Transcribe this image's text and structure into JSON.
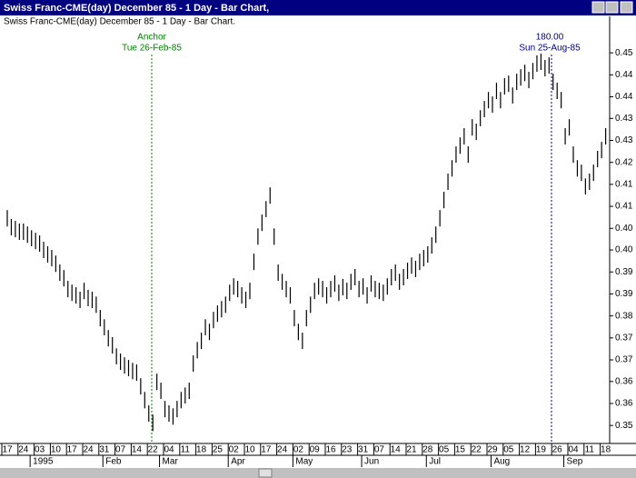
{
  "window_title": "Swiss Franc-CME(day) December 85 - 1 Day - Bar Chart,",
  "chart_data": {
    "type": "ohlc",
    "title": "Swiss Franc-CME(day) December 85 - 1 Day - Bar Chart.",
    "annotations": [
      {
        "label": "Anchor",
        "date": "Tue 26-Feb-85"
      },
      {
        "label": "180.00",
        "date": "Sun 25-Aug-85"
      }
    ],
    "categories": [
      "17",
      null,
      null,
      null,
      "24",
      null,
      null,
      null,
      "03",
      null,
      null,
      null,
      "10",
      null,
      null,
      null,
      "17",
      null,
      null,
      null,
      "24",
      null,
      null,
      null,
      "31",
      null,
      null,
      null,
      "07",
      null,
      null,
      null,
      "14",
      null,
      null,
      null,
      "22",
      null,
      null,
      null,
      "04",
      null,
      null,
      null,
      "11",
      null,
      null,
      null,
      "18",
      null,
      null,
      null,
      "25",
      null,
      null,
      null,
      "02",
      null,
      null,
      null,
      "10",
      null,
      null,
      null,
      "17",
      null,
      null,
      null,
      "24",
      null,
      null,
      null,
      "02",
      null,
      null,
      null,
      "09",
      null,
      null,
      null,
      "16",
      null,
      null,
      null,
      "23",
      null,
      null,
      null,
      "31",
      null,
      null,
      null,
      "07",
      null,
      null,
      null,
      "14",
      null,
      null,
      null,
      "21",
      null,
      null,
      null,
      "28",
      null,
      null,
      null,
      "05",
      null,
      null,
      null,
      "15",
      null,
      null,
      null,
      "22",
      null,
      null,
      null,
      "29",
      null,
      null,
      null,
      "05",
      null,
      null,
      null,
      "12",
      null,
      null,
      null,
      "19",
      null,
      null,
      null,
      "26",
      null,
      null,
      null,
      "04",
      null,
      null,
      null,
      "11",
      null,
      null,
      null,
      "18"
    ],
    "months": [
      null,
      null,
      null,
      null,
      null,
      null,
      null,
      "1995",
      null,
      null,
      null,
      null,
      null,
      null,
      null,
      null,
      null,
      null,
      null,
      null,
      null,
      null,
      null,
      null,
      null,
      "Feb",
      null,
      null,
      null,
      null,
      null,
      null,
      null,
      null,
      null,
      null,
      null,
      null,
      null,
      "Mar",
      null,
      null,
      null,
      null,
      null,
      null,
      null,
      null,
      null,
      null,
      null,
      null,
      null,
      null,
      null,
      null,
      "Apr",
      null,
      null,
      null,
      null,
      null,
      null,
      null,
      null,
      null,
      null,
      null,
      null,
      null,
      null,
      null,
      "May",
      null,
      null,
      null,
      null,
      null,
      null,
      null,
      null,
      null,
      null,
      null,
      null,
      null,
      null,
      null,
      null,
      "Jun",
      null,
      null,
      null,
      null,
      null,
      null,
      null,
      null,
      null,
      null,
      null,
      null,
      null,
      null,
      null,
      "Jul",
      null,
      null,
      null,
      null,
      null,
      null,
      null,
      null,
      null,
      null,
      null,
      null,
      null,
      null,
      null,
      "Aug",
      null,
      null,
      null,
      null,
      null,
      null,
      null,
      null,
      null,
      null,
      null,
      null,
      null,
      null,
      null,
      null,
      null,
      "Sep",
      null,
      null,
      null,
      null,
      null,
      null,
      null,
      null,
      null
    ],
    "high": [
      0.4078,
      0.4054,
      0.4049,
      0.4042,
      0.4042,
      0.4034,
      0.4024,
      0.4017,
      0.401,
      0.3993,
      0.3981,
      0.3971,
      0.3956,
      0.3932,
      0.3917,
      0.3888,
      0.3878,
      0.3871,
      0.3859,
      0.3883,
      0.3864,
      0.3859,
      0.3846,
      0.381,
      0.3785,
      0.3756,
      0.3737,
      0.3707,
      0.3693,
      0.3683,
      0.3676,
      0.3668,
      0.3664,
      0.3627,
      0.359,
      0.3554,
      0.3529,
      0.3639,
      0.3615,
      0.3566,
      0.3554,
      0.3546,
      0.3566,
      0.359,
      0.3602,
      0.3615,
      0.3688,
      0.3724,
      0.3749,
      0.3785,
      0.3773,
      0.3805,
      0.3822,
      0.3834,
      0.3846,
      0.3878,
      0.3895,
      0.3888,
      0.3871,
      0.3859,
      0.3883,
      0.3961,
      0.4029,
      0.4066,
      0.4102,
      0.4139,
      0.4029,
      0.3932,
      0.3907,
      0.3888,
      0.3871,
      0.381,
      0.3773,
      0.3749,
      0.381,
      0.3846,
      0.3883,
      0.3895,
      0.3888,
      0.3871,
      0.3888,
      0.3903,
      0.3878,
      0.3893,
      0.3883,
      0.3907,
      0.392,
      0.3888,
      0.3895,
      0.3871,
      0.3903,
      0.3888,
      0.3883,
      0.3878,
      0.3895,
      0.392,
      0.3932,
      0.3907,
      0.392,
      0.3937,
      0.3951,
      0.3942,
      0.3961,
      0.3971,
      0.3981,
      0.4005,
      0.4034,
      0.4078,
      0.4127,
      0.4176,
      0.4212,
      0.4249,
      0.4273,
      0.4298,
      0.4249,
      0.4322,
      0.431,
      0.4346,
      0.4371,
      0.4395,
      0.4383,
      0.442,
      0.4395,
      0.4432,
      0.4439,
      0.4407,
      0.4444,
      0.4456,
      0.4468,
      0.4449,
      0.4473,
      0.4493,
      0.4498,
      0.4481,
      0.4488,
      0.4444,
      0.442,
      0.4395,
      0.4298,
      0.4322,
      0.4249,
      0.4212,
      0.42,
      0.4163,
      0.4176,
      0.42,
      0.4237,
      0.4261,
      0.4298
    ],
    "low": [
      0.4034,
      0.401,
      0.4005,
      0.3998,
      0.3998,
      0.399,
      0.3981,
      0.3973,
      0.3966,
      0.3949,
      0.3937,
      0.3927,
      0.3912,
      0.3888,
      0.3873,
      0.3844,
      0.3834,
      0.3827,
      0.3815,
      0.3839,
      0.382,
      0.3815,
      0.3802,
      0.3766,
      0.3742,
      0.3712,
      0.3693,
      0.3664,
      0.3649,
      0.3639,
      0.3632,
      0.3624,
      0.362,
      0.3583,
      0.3546,
      0.351,
      0.3485,
      0.3595,
      0.3571,
      0.3522,
      0.351,
      0.3502,
      0.3522,
      0.3546,
      0.3559,
      0.3571,
      0.3644,
      0.368,
      0.3705,
      0.3742,
      0.3729,
      0.3761,
      0.3778,
      0.379,
      0.3802,
      0.3834,
      0.3851,
      0.3844,
      0.3827,
      0.3815,
      0.3839,
      0.3917,
      0.3985,
      0.4022,
      0.4059,
      0.4095,
      0.3985,
      0.3888,
      0.3864,
      0.3844,
      0.3827,
      0.3766,
      0.3729,
      0.3705,
      0.3766,
      0.3802,
      0.3839,
      0.3851,
      0.3844,
      0.3827,
      0.3844,
      0.3859,
      0.3834,
      0.3849,
      0.3839,
      0.3864,
      0.3876,
      0.3844,
      0.3851,
      0.3827,
      0.3859,
      0.3844,
      0.3839,
      0.3834,
      0.3851,
      0.3876,
      0.3888,
      0.3864,
      0.3876,
      0.3893,
      0.3907,
      0.3898,
      0.3917,
      0.3927,
      0.3937,
      0.3961,
      0.399,
      0.4034,
      0.4083,
      0.4132,
      0.4168,
      0.4205,
      0.4229,
      0.4254,
      0.4205,
      0.4278,
      0.4266,
      0.4303,
      0.4327,
      0.4351,
      0.4339,
      0.4376,
      0.4351,
      0.4388,
      0.4395,
      0.4364,
      0.44,
      0.4412,
      0.4424,
      0.4405,
      0.4429,
      0.4449,
      0.4454,
      0.4437,
      0.4444,
      0.44,
      0.4376,
      0.4351,
      0.4254,
      0.4278,
      0.4205,
      0.4168,
      0.4156,
      0.412,
      0.4132,
      0.4156,
      0.4193,
      0.4217,
      0.4254
    ],
    "color": "#000000",
    "ylim": [
      0.3459,
      0.4593
    ],
    "yticks": [
      {
        "value": 0.35,
        "label": "0.35"
      },
      {
        "value": 0.3559,
        "label": "0.36"
      },
      {
        "value": 0.3618,
        "label": "0.36"
      },
      {
        "value": 0.3676,
        "label": "0.37"
      },
      {
        "value": 0.3735,
        "label": "0.37"
      },
      {
        "value": 0.3794,
        "label": "0.38"
      },
      {
        "value": 0.3853,
        "label": "0.39"
      },
      {
        "value": 0.3912,
        "label": "0.39"
      },
      {
        "value": 0.3971,
        "label": "0.40"
      },
      {
        "value": 0.4029,
        "label": "0.40"
      },
      {
        "value": 0.4088,
        "label": "0.41"
      },
      {
        "value": 0.4147,
        "label": "0.41"
      },
      {
        "value": 0.4206,
        "label": "0.42"
      },
      {
        "value": 0.4265,
        "label": "0.43"
      },
      {
        "value": 0.4324,
        "label": "0.43"
      },
      {
        "value": 0.4382,
        "label": "0.44"
      },
      {
        "value": 0.4441,
        "label": "0.44"
      },
      {
        "value": 0.45,
        "label": "0.45"
      }
    ]
  }
}
